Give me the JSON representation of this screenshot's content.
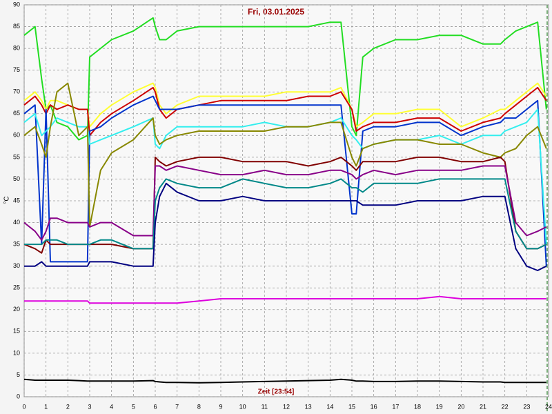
{
  "chart_data": {
    "type": "line",
    "title": "Fri, 03.01.2025",
    "x_label": "Zeit [23:54]",
    "y_label": "°C",
    "xlim": [
      0,
      24
    ],
    "ylim": [
      0,
      90
    ],
    "xticks": [
      0,
      1,
      2,
      3,
      4,
      5,
      6,
      7,
      8,
      9,
      10,
      11,
      12,
      13,
      14,
      15,
      16,
      17,
      18,
      19,
      20,
      21,
      22,
      23,
      24
    ],
    "yticks": [
      0,
      5,
      10,
      15,
      20,
      25,
      30,
      35,
      40,
      45,
      50,
      55,
      60,
      65,
      70,
      75,
      80,
      85,
      90
    ],
    "grid": true,
    "x": [
      0,
      0.5,
      0.8,
      1,
      1.2,
      1.5,
      2,
      2.5,
      2.9,
      3,
      3.5,
      4,
      5,
      5.9,
      6,
      6.2,
      6.5,
      7,
      8,
      9,
      10,
      11,
      12,
      13,
      14,
      14.5,
      15,
      15.2,
      15.5,
      16,
      17,
      18,
      19,
      20,
      21,
      21.8,
      22,
      22.5,
      23,
      23.5,
      23.9
    ],
    "series": [
      {
        "color": "#22dd22",
        "values": [
          83,
          85,
          73,
          66,
          67,
          63,
          62,
          59,
          60,
          78,
          80,
          82,
          84,
          87,
          85,
          82,
          82,
          84,
          85,
          85,
          85,
          85,
          85,
          85,
          86,
          86,
          62,
          60,
          78,
          80,
          82,
          82,
          83,
          83,
          81,
          81,
          82,
          84,
          85,
          86,
          66
        ]
      },
      {
        "color": "#ffff33",
        "values": [
          68,
          70,
          68,
          66,
          68,
          68,
          67,
          66,
          66,
          62,
          65,
          67,
          70,
          72,
          71,
          67,
          65,
          67,
          69,
          69,
          69,
          69,
          70,
          70,
          70,
          71,
          66,
          62,
          63,
          65,
          65,
          66,
          66,
          62,
          64,
          66,
          66,
          68,
          70,
          72,
          69
        ]
      },
      {
        "color": "#cc0000",
        "values": [
          67,
          69,
          67,
          65,
          67,
          66,
          67,
          66,
          66,
          60,
          63,
          65,
          68,
          71,
          70,
          66,
          64,
          66,
          67,
          68,
          68,
          68,
          68,
          69,
          69,
          70,
          66,
          61,
          62,
          63,
          63,
          64,
          64,
          61,
          63,
          64,
          65,
          67,
          69,
          71,
          68
        ]
      },
      {
        "color": "#0033cc",
        "values": [
          65,
          67,
          35,
          66,
          31,
          31,
          31,
          31,
          31,
          61,
          62,
          64,
          67,
          69,
          68,
          66,
          66,
          66,
          67,
          67,
          67,
          67,
          67,
          67,
          67,
          67,
          42,
          42,
          61,
          62,
          62,
          63,
          63,
          60,
          62,
          63,
          64,
          64,
          66,
          68,
          30
        ]
      },
      {
        "color": "#33eeee",
        "values": [
          63,
          65,
          60,
          61,
          62,
          64,
          63,
          62,
          62,
          58,
          59,
          60,
          62,
          64,
          58,
          57,
          60,
          62,
          62,
          62,
          62,
          63,
          62,
          62,
          63,
          64,
          60,
          59,
          57,
          58,
          59,
          59,
          60,
          58,
          60,
          60,
          61,
          62,
          63,
          66,
          35
        ]
      },
      {
        "color": "#888800",
        "values": [
          60,
          62,
          58,
          55,
          62,
          70,
          72,
          60,
          62,
          39,
          52,
          56,
          59,
          64,
          60,
          58,
          59,
          60,
          61,
          61,
          61,
          61,
          62,
          62,
          63,
          63,
          55,
          53,
          57,
          58,
          59,
          59,
          58,
          58,
          56,
          55,
          56,
          57,
          60,
          62,
          57
        ]
      },
      {
        "color": "#800000",
        "values": [
          35,
          34,
          33,
          36,
          35,
          35,
          35,
          35,
          35,
          35,
          35,
          35,
          34,
          34,
          55,
          54,
          53,
          54,
          55,
          55,
          54,
          54,
          54,
          53,
          54,
          55,
          53,
          52,
          54,
          54,
          54,
          55,
          55,
          54,
          54,
          55,
          54,
          38,
          34,
          34,
          35
        ]
      },
      {
        "color": "#880088",
        "values": [
          40,
          38,
          36,
          38,
          41,
          41,
          40,
          40,
          40,
          39,
          40,
          40,
          37,
          37,
          53,
          53,
          52,
          53,
          52,
          51,
          51,
          52,
          51,
          51,
          52,
          52,
          51,
          50,
          51,
          52,
          51,
          52,
          52,
          52,
          53,
          53,
          53,
          40,
          37,
          38,
          39
        ]
      },
      {
        "color": "#008888",
        "values": [
          35,
          35,
          35,
          36,
          36,
          36,
          35,
          35,
          35,
          35,
          36,
          36,
          34,
          34,
          45,
          48,
          50,
          49,
          48,
          48,
          50,
          49,
          48,
          48,
          49,
          50,
          48,
          48,
          47,
          49,
          49,
          49,
          50,
          50,
          50,
          50,
          50,
          38,
          34,
          34,
          35
        ]
      },
      {
        "color": "#000080",
        "values": [
          30,
          30,
          31,
          30,
          30,
          30,
          30,
          30,
          30,
          31,
          31,
          31,
          30,
          30,
          40,
          46,
          49,
          47,
          45,
          45,
          46,
          45,
          45,
          45,
          45,
          45,
          45,
          45,
          44,
          44,
          44,
          45,
          45,
          45,
          46,
          46,
          46,
          34,
          30,
          29,
          30
        ]
      },
      {
        "color": "#dd00dd",
        "values": [
          22,
          22,
          22,
          22,
          22,
          22,
          22,
          22,
          22,
          21.5,
          21.5,
          21.5,
          21.5,
          21.5,
          21.5,
          21.5,
          21.5,
          21.5,
          22,
          22.5,
          22.5,
          22.5,
          22.5,
          22.5,
          22.5,
          22.5,
          22.5,
          22.5,
          22.5,
          22.5,
          22.5,
          22.5,
          23,
          22.5,
          22.5,
          22.5,
          22.5,
          22.5,
          22.5,
          22.5,
          22.5
        ]
      },
      {
        "color": "#000000",
        "values": [
          4,
          3.8,
          3.8,
          3.8,
          3.8,
          3.8,
          3.8,
          3.7,
          3.6,
          3.6,
          3.6,
          3.6,
          3.6,
          3.7,
          3.5,
          3.4,
          3.3,
          3.3,
          3.2,
          3.3,
          3.4,
          3.5,
          3.6,
          3.7,
          3.8,
          4,
          3.8,
          3.6,
          3.6,
          3.5,
          3.5,
          3.6,
          3.6,
          3.5,
          3.4,
          3.4,
          3.3,
          3.3,
          3.3,
          3.3,
          3.3
        ]
      }
    ]
  }
}
